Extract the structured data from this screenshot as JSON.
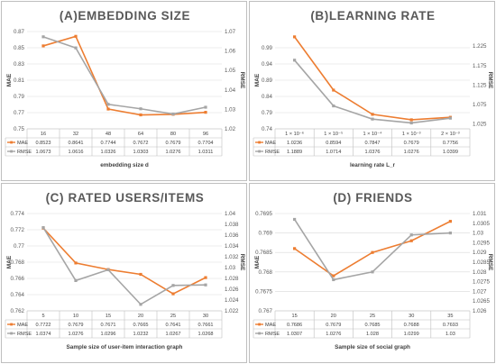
{
  "colors": {
    "mae": "#ed7d31",
    "rmse": "#a5a5a5",
    "grid": "#d9d9d9",
    "text": "#595959"
  },
  "chart_data": [
    {
      "type": "line",
      "title": "(A)EMBEDDING SIZE",
      "xlabel": "embedding size d",
      "ylabel": "MAE",
      "y2label": "RMSE",
      "categories": [
        "16",
        "32",
        "48",
        "64",
        "80",
        "96"
      ],
      "ylim": [
        0.75,
        0.87
      ],
      "yticks": [
        "0.75",
        "0.77",
        "0.79",
        "0.81",
        "0.83",
        "0.85",
        "0.87"
      ],
      "y2lim": [
        1.02,
        1.07
      ],
      "y2ticks": [
        "1.02",
        "1.03",
        "1.04",
        "1.05",
        "1.06",
        "1.07"
      ],
      "series": [
        {
          "name": "MAE",
          "axis": "left",
          "values": [
            0.8523,
            0.8641,
            0.7744,
            0.7672,
            0.7679,
            0.7704
          ],
          "labels": [
            "0.8523",
            "0.8641",
            "0.7744",
            "0.7672",
            "0.7679",
            "0.7704"
          ]
        },
        {
          "name": "RMSE",
          "axis": "right",
          "values": [
            1.0673,
            1.0616,
            1.0326,
            1.0303,
            1.0276,
            1.0311
          ],
          "labels": [
            "1.0673",
            "1.0616",
            "1.0326",
            "1.0303",
            "1.0276",
            "1.0311"
          ]
        }
      ]
    },
    {
      "type": "line",
      "title": "(B)LEARNING RATE",
      "xlabel": "learning rate L_r",
      "ylabel": "MAE",
      "y2label": "RMSE",
      "categories": [
        "1 × 10⁻⁶",
        "1 × 10⁻⁵",
        "1 × 10⁻⁴",
        "1 × 10⁻³",
        "2 × 10⁻³"
      ],
      "ylim": [
        0.74,
        1.04
      ],
      "yticks": [
        "0.74",
        "0.79",
        "0.84",
        "0.89",
        "0.94",
        "0.99"
      ],
      "y2lim": [
        1.0125,
        1.2625
      ],
      "y2ticks": [
        "1.025",
        "1.075",
        "1.125",
        "1.175",
        "1.225"
      ],
      "series": [
        {
          "name": "MAE",
          "axis": "left",
          "values": [
            1.0236,
            0.8594,
            0.7847,
            0.7679,
            0.7756
          ],
          "labels": [
            "1.0236",
            "0.8594",
            "0.7847",
            "0.7679",
            "0.7756"
          ]
        },
        {
          "name": "RMSE",
          "axis": "right",
          "values": [
            1.1889,
            1.0714,
            1.0376,
            1.0276,
            1.0399
          ],
          "labels": [
            "1.1889",
            "1.0714",
            "1.0376",
            "1.0276",
            "1.0399"
          ]
        }
      ]
    },
    {
      "type": "line",
      "title": "(C) RATED USERS/ITEMS",
      "xlabel": "Sample size of user-item interaction graph",
      "ylabel": "MAE",
      "y2label": "RMSE",
      "categories": [
        "5",
        "10",
        "15",
        "20",
        "25",
        "30"
      ],
      "ylim": [
        0.762,
        0.774
      ],
      "yticks": [
        "0.762",
        "0.764",
        "0.766",
        "0.768",
        "0.77",
        "0.772",
        "0.774"
      ],
      "y2lim": [
        1.022,
        1.04
      ],
      "y2ticks": [
        "1.022",
        "1.024",
        "1.026",
        "1.028",
        "1.03",
        "1.032",
        "1.034",
        "1.036",
        "1.038",
        "1.04"
      ],
      "series": [
        {
          "name": "MAE",
          "axis": "left",
          "values": [
            0.7722,
            0.7679,
            0.7671,
            0.7665,
            0.7641,
            0.7661
          ],
          "labels": [
            "0.7722",
            "0.7679",
            "0.7671",
            "0.7665",
            "0.7641",
            "0.7661"
          ]
        },
        {
          "name": "RMSE",
          "axis": "right",
          "values": [
            1.0374,
            1.0276,
            1.0296,
            1.0232,
            1.0267,
            1.0268
          ],
          "labels": [
            "1.0374",
            "1.0276",
            "1.0296",
            "1.0232",
            "1.0267",
            "1.0268"
          ]
        }
      ]
    },
    {
      "type": "line",
      "title": "(D) FRIENDS",
      "xlabel": "Sample size of social graph",
      "ylabel": "MAE",
      "y2label": "RMSE",
      "categories": [
        "15",
        "20",
        "25",
        "30",
        "35"
      ],
      "ylim": [
        0.767,
        0.7695
      ],
      "yticks": [
        "0.767",
        "0.7675",
        "0.768",
        "0.7685",
        "0.769",
        "0.7695"
      ],
      "y2lim": [
        1.026,
        1.031
      ],
      "y2ticks": [
        "1.026",
        "1.0265",
        "1.027",
        "1.0275",
        "1.028",
        "1.0285",
        "1.029",
        "1.0295",
        "1.03",
        "1.0305",
        "1.031"
      ],
      "series": [
        {
          "name": "MAE",
          "axis": "left",
          "values": [
            0.7686,
            0.7679,
            0.7685,
            0.7688,
            0.7693
          ],
          "labels": [
            "0.7686",
            "0.7679",
            "0.7685",
            "0.7688",
            "0.7693"
          ]
        },
        {
          "name": "RMSE",
          "axis": "right",
          "values": [
            1.0307,
            1.0276,
            1.028,
            1.0299,
            1.03
          ],
          "labels": [
            "1.0307",
            "1.0276",
            "1.028",
            "1.0299",
            "1.03"
          ]
        }
      ]
    }
  ]
}
